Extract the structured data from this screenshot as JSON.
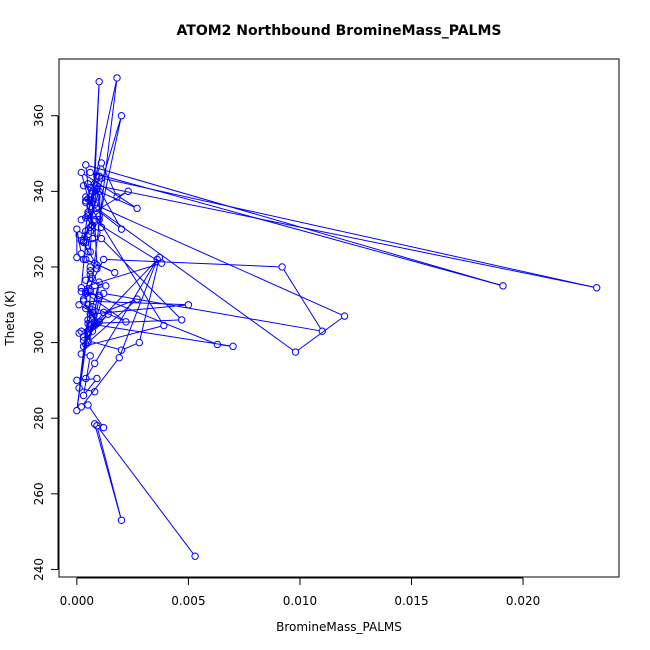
{
  "chart_data": {
    "type": "line",
    "title": "ATOM2 Northbound BromineMass_PALMS",
    "xlabel": "BromineMass_PALMS",
    "ylabel": "Theta (K)",
    "xlim": [
      -0.0008,
      0.0243
    ],
    "ylim": [
      238,
      375
    ],
    "xticks": [
      0.0,
      0.005,
      0.01,
      0.015,
      0.02
    ],
    "xtick_labels": [
      "0.000",
      "0.005",
      "0.010",
      "0.015",
      "0.020"
    ],
    "yticks": [
      240,
      260,
      280,
      300,
      320,
      340,
      360
    ],
    "ytick_labels": [
      "240",
      "260",
      "280",
      "300",
      "320",
      "340",
      "360"
    ],
    "grid": false,
    "series": [
      {
        "color": "#0000ff",
        "marker": "open-circle",
        "x": [
          0.0053,
          0.0009,
          0.002,
          0.0008,
          0.0012,
          0.0005,
          0.0002,
          0.0019,
          0.0036,
          0.0008,
          0.0004,
          0.0,
          0.0009,
          0.0003,
          0.0006,
          0.0002,
          0.0005,
          0.002,
          0.0028,
          0.0037,
          0.0003,
          0.0008,
          0.0001,
          0.0002,
          0.001,
          0.0004,
          0.0007,
          0.0001,
          0.0003,
          0.0009,
          0.0005,
          0.0022,
          0.0004,
          0.001,
          0.0002,
          0.0006,
          0.0013,
          0.0004,
          0.0007,
          0.0006,
          0.0009,
          0.0006,
          0.0004,
          0.0017,
          0.0008,
          0.0003,
          0.0,
          0.0,
          0.0002,
          0.0005,
          0.0003,
          0.0007,
          0.0001,
          0.0006,
          0.0007,
          0.0004,
          0.001,
          0.0002,
          0.0005,
          0.0009,
          0.0098,
          0.012,
          0.0008,
          0.0006,
          0.0004,
          0.0007,
          0.0009,
          0.0003,
          0.0005,
          0.0233,
          0.0011,
          0.0009,
          0.0006,
          0.0191,
          0.0004,
          0.0006,
          0.0039,
          0.0003,
          0.0008,
          0.001,
          0.0006,
          0.0003,
          0.005,
          0.0006,
          0.0,
          0.0005,
          0.0007,
          0.0008,
          0.0004,
          0.0027,
          0.0012,
          0.0005,
          0.0014,
          0.0003,
          0.001,
          0.0007,
          0.0005,
          0.0008,
          0.0012,
          0.011,
          0.0092,
          0.0012,
          0.0003,
          0.0006,
          0.0004,
          0.0063,
          0.007,
          0.0005,
          0.0047,
          0.0011,
          0.0004,
          0.0002,
          0.0038,
          0.0008,
          0.0009,
          0.0002,
          0.0006,
          0.001,
          0.0006,
          0.0002,
          0.0027,
          0.0006,
          0.0005,
          0.0009,
          0.001,
          0.0011,
          0.0009,
          0.002,
          0.0004,
          0.0007,
          0.0009,
          0.0004,
          0.0011,
          0.0018,
          0.0023,
          0.0005,
          0.0008,
          0.001,
          0.0006,
          0.0004,
          0.001,
          0.002,
          0.0003,
          0.0005,
          0.0018,
          0.0001,
          0.0008
        ],
        "y": [
          243.5,
          278.0,
          253.0,
          278.5,
          277.5,
          283.5,
          283.0,
          296.0,
          322.0,
          294.5,
          290.5,
          290.0,
          290.5,
          286.0,
          296.5,
          297.0,
          300.5,
          298.0,
          300.0,
          322.5,
          301.5,
          304.5,
          302.5,
          303.0,
          305.5,
          309.0,
          308.0,
          310.0,
          311.0,
          305.0,
          310.0,
          305.5,
          313.0,
          312.5,
          313.5,
          314.0,
          315.0,
          316.5,
          317.0,
          318.0,
          319.5,
          320.0,
          322.0,
          318.5,
          321.0,
          322.0,
          322.5,
          330.0,
          323.5,
          324.0,
          327.0,
          327.5,
          328.5,
          329.5,
          331.0,
          333.0,
          333.5,
          332.5,
          334.0,
          335.5,
          297.5,
          307.0,
          336.5,
          337.5,
          338.5,
          340.0,
          340.5,
          341.5,
          342.0,
          314.5,
          343.5,
          344.0,
          345.0,
          315.0,
          347.0,
          336.0,
          304.5,
          299.0,
          305.0,
          312.0,
          313.5,
          311.0,
          310.0,
          307.5,
          282.0,
          306.0,
          309.5,
          305.5,
          299.5,
          311.5,
          308.0,
          302.5,
          307.5,
          300.5,
          316.0,
          303.0,
          300.0,
          305.0,
          313.0,
          303.0,
          320.0,
          322.0,
          311.5,
          319.0,
          313.5,
          299.5,
          299.0,
          305.0,
          306.0,
          327.5,
          326.5,
          314.5,
          321.0,
          332.0,
          320.5,
          327.0,
          330.5,
          344.0,
          336.0,
          345.0,
          335.5,
          341.0,
          338.0,
          338.5,
          340.0,
          330.5,
          341.5,
          330.0,
          337.5,
          331.0,
          329.0,
          337.0,
          347.5,
          338.5,
          340.0,
          333.5,
          342.0,
          369.0,
          324.0,
          329.5,
          332.5,
          360.0,
          326.5,
          334.5,
          370.0,
          288.0,
          287.0
        ]
      }
    ]
  }
}
